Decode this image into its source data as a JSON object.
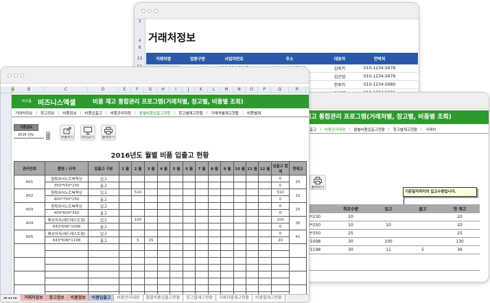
{
  "back_window": {
    "row_numbers": [
      "3",
      "4",
      "8",
      "10",
      "11"
    ],
    "title": "거래처정보",
    "headers": [
      "거래처명",
      "업종구분",
      "사업자번호",
      "주소",
      "대표자",
      "연락처"
    ],
    "rows": [
      [
        "클린렌즈",
        "도소매",
        "612-12-12345",
        "부산시 남구 용호동",
        "김루키",
        "010-1234-5678"
      ],
      [
        "",
        "",
        "",
        "",
        "김산업",
        "010-1234-5679"
      ],
      [
        "",
        "",
        "",
        "",
        "한루키",
        "010-1234-5680"
      ],
      [
        "",
        "",
        "",
        "",
        "이상엽",
        "010-1234-5681"
      ]
    ],
    "address_fragments": [
      "",
      "양대로",
      "재연동",
      "구"
    ]
  },
  "front_window": {
    "columns": [
      "A",
      "B",
      "C",
      "D",
      "E",
      "F",
      "G",
      "H",
      "I",
      "J",
      "K",
      "L",
      "M",
      "N",
      "O",
      "P",
      "Q",
      "R"
    ],
    "brand_small": "비즈폼",
    "brand": "비즈니스엑셀",
    "program_title": "비품 재고 통합관리 프로그램(거래처별, 창고별, 비품별 조회)",
    "nav": [
      "거래처정보",
      "창고정보",
      "비품정보",
      "비품입출고",
      "비품관리대장",
      "월별비품입출고현황",
      "창고별재고현황",
      "거래처별재고현황",
      "비품별재"
    ],
    "nav_active": "월별비품입출고현황",
    "year_label": "기준년도",
    "year_value": "2016 년도",
    "buttons": [
      {
        "label": "추출하기",
        "icon": "export-icon"
      },
      {
        "label": "미리보기",
        "icon": "monitor-icon"
      },
      {
        "label": "출력하기",
        "icon": "print-icon"
      }
    ],
    "report_title": "2016년도 월별 비품 입출고 현황",
    "table_headers": [
      "관리번호",
      "품명 / 규격",
      "입출고 구분",
      "1 월",
      "2 월",
      "3 월",
      "4 월",
      "5 월",
      "6 월",
      "7 월",
      "8 월",
      "9 월",
      "10 월",
      "11 월",
      "12 월",
      "입출고 합계",
      "현재고"
    ],
    "items": [
      {
        "id": "A01",
        "name": "원목좌식노트북책상",
        "spec": "350*550*230",
        "in": [
          "",
          "",
          "",
          "",
          "",
          "",
          "",
          "",
          "",
          "",
          "",
          ""
        ],
        "out": [
          "",
          "",
          "",
          "",
          "",
          "",
          "",
          "",
          "",
          "",
          "",
          ""
        ],
        "in_total": "0",
        "out_total": "0",
        "stock": "20"
      },
      {
        "id": "A02",
        "name": "원목좌식노트북책상",
        "spec": "400*750*250",
        "in": [
          "",
          "510",
          "",
          "",
          "",
          "",
          "",
          "",
          "",
          "",
          "",
          ""
        ],
        "out": [
          "",
          "",
          "",
          "",
          "",
          "",
          "",
          "",
          "",
          "",
          "",
          ""
        ],
        "in_total": "510",
        "out_total": "0",
        "stock": "10"
      },
      {
        "id": "A03",
        "name": "원목좌식노트북책상",
        "spec": "400*600*350",
        "in": [
          "",
          "",
          "",
          "",
          "",
          "",
          "",
          "",
          "",
          "",
          "",
          ""
        ],
        "out": [
          "",
          "",
          "",
          "",
          "",
          "",
          "",
          "",
          "",
          "",
          "",
          ""
        ],
        "in_total": "0",
        "out_total": "0",
        "stock": "25"
      },
      {
        "id": "A04",
        "name": "메쉬의자(헤드레스트형)",
        "spec": "643*606*1098",
        "in": [
          "",
          "100",
          "",
          "",
          "",
          "",
          "",
          "",
          "",
          "",
          "",
          ""
        ],
        "out": [
          "",
          "",
          "",
          "",
          "",
          "",
          "",
          "",
          "",
          "",
          "",
          ""
        ],
        "in_total": "100",
        "out_total": "0",
        "stock": "30"
      },
      {
        "id": "A05",
        "name": "메쉬의자(헤드레스트형)",
        "spec": "643*606*1198",
        "in": [
          "",
          "",
          "",
          "",
          "",
          "",
          "",
          "",
          "",
          "",
          "",
          ""
        ],
        "out": [
          "",
          "5",
          "15",
          "",
          "",
          "",
          "",
          "",
          "",
          "",
          "",
          ""
        ],
        "in_total": "0",
        "out_total": "20",
        "stock": "41"
      }
    ],
    "in_label": "입고",
    "out_label": "출고",
    "empty_groups": 4,
    "sheet_tabs": [
      "거래처정보",
      "창고정보",
      "비품정보",
      "비품입출고",
      "비품관리대장",
      "월별비품입출고현황",
      "창고별재고현황",
      "거래처별재고현황",
      "비품별재고현황"
    ],
    "sheet_tab_colors": [
      "#f2b8b8",
      "#f2b8b8",
      "#f2b8b8",
      "#b8cff2",
      "#ffffff",
      "#ffffff",
      "#ffffff",
      "#ffffff",
      "#ffffff"
    ]
  },
  "middle_window": {
    "program_title_fragment": "재고 통합관리 프로그램(거래처별, 창고별, 비품별 조회)",
    "nav": [
      "입출고",
      "비품관리대장",
      "월별비품입출고현황",
      "창고별재고현황",
      "거래처"
    ],
    "nav_active": "비품관리대장",
    "print_label": "출력하기",
    "tooltip": "기준일자까지의 입고수량입니다.",
    "headers": [
      "격",
      "최초수량",
      "입고",
      "출고",
      "현 재고"
    ],
    "rows": [
      [
        "50*230",
        "20",
        "",
        "",
        "20"
      ],
      [
        "50*250",
        "10",
        "10",
        "",
        "20"
      ],
      [
        "00*350",
        "25",
        "",
        "",
        "25"
      ],
      [
        "6*1098",
        "30",
        "100",
        "",
        "130"
      ],
      [
        "6*1198",
        "30",
        "11",
        "5",
        "36"
      ]
    ]
  },
  "colors": {
    "green": "#2e9a2e",
    "blue_header": "#2a58a8",
    "table_header_gray": "#a9a9a9"
  }
}
